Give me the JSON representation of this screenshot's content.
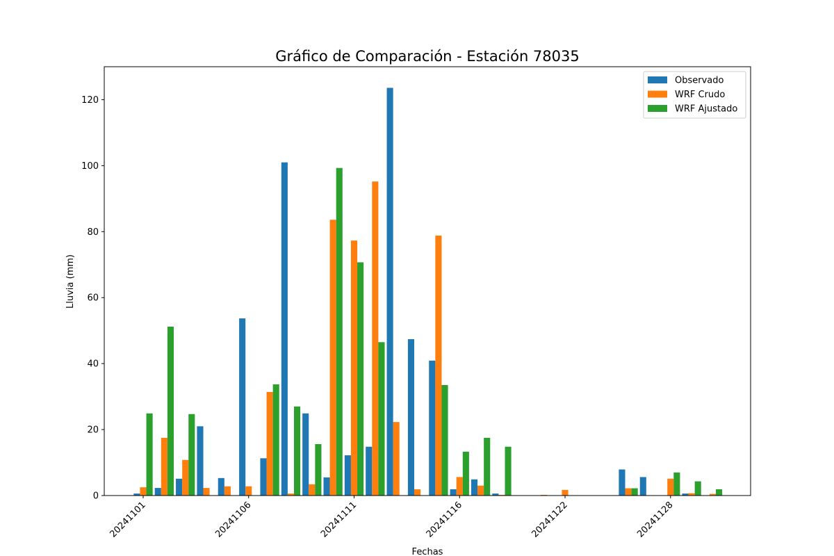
{
  "chart_data": {
    "type": "bar",
    "title": "Gráfico de Comparación - Estación 78035",
    "xlabel": "Fechas",
    "ylabel": "Lluvia (mm)",
    "ylim": [
      0,
      130
    ],
    "yticks": [
      0,
      20,
      40,
      60,
      80,
      100,
      120
    ],
    "grid": false,
    "legend_position": "top-right",
    "x_tick_labels": [
      {
        "index": 0,
        "label": "20241101"
      },
      {
        "index": 5,
        "label": "20241106"
      },
      {
        "index": 10,
        "label": "20241111"
      },
      {
        "index": 15,
        "label": "20241116"
      },
      {
        "index": 20,
        "label": "20241122"
      },
      {
        "index": 25,
        "label": "20241128"
      }
    ],
    "series": [
      {
        "name": "Observado",
        "color": "#1f77b4",
        "values": [
          0.6,
          2.3,
          5.1,
          21.0,
          5.3,
          53.7,
          11.3,
          101.0,
          24.9,
          5.5,
          12.2,
          14.8,
          123.6,
          47.4,
          40.9,
          1.9,
          4.9,
          0.6,
          0.0,
          0.0,
          0.0,
          0.0,
          0.0,
          7.9,
          5.6,
          0.0,
          0.6,
          0.0
        ]
      },
      {
        "name": "WRF Crudo",
        "color": "#ff7f0e",
        "values": [
          2.5,
          17.5,
          10.8,
          2.3,
          2.8,
          2.8,
          31.4,
          0.6,
          3.4,
          83.6,
          77.3,
          95.2,
          22.3,
          1.9,
          78.8,
          5.6,
          3.0,
          0.2,
          0.0,
          0.2,
          1.7,
          0.0,
          0.0,
          2.2,
          0.0,
          5.1,
          0.7,
          0.5
        ]
      },
      {
        "name": "WRF Ajustado",
        "color": "#2ca02c",
        "values": [
          24.9,
          51.2,
          24.7,
          0.0,
          0.0,
          0.0,
          33.7,
          27.0,
          15.6,
          99.3,
          70.7,
          46.5,
          0.0,
          0.0,
          33.5,
          13.3,
          17.5,
          14.8,
          0.0,
          0.0,
          0.0,
          0.0,
          0.0,
          2.2,
          0.0,
          7.0,
          4.3,
          1.9
        ]
      }
    ]
  }
}
